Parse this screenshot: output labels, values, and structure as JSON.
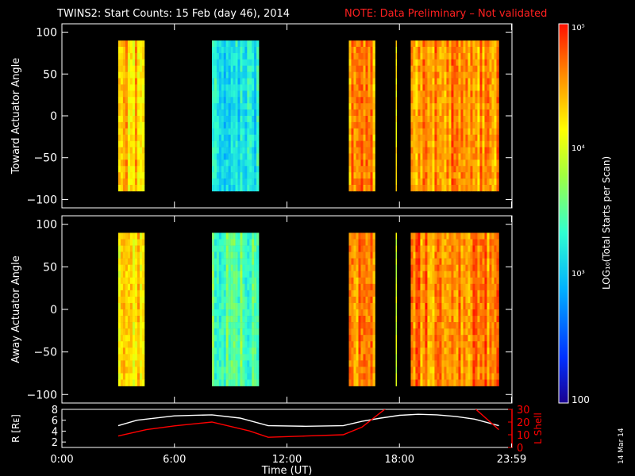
{
  "title": {
    "main": "TWINS2: Start Counts: 15 Feb (day  46), 2014",
    "note": "NOTE: Data Preliminary – Not validated",
    "note_color": "#ff2020"
  },
  "stamp": "14 Mar 14",
  "colorbar": {
    "label": "LOG₁₀(Total Starts per Scan)",
    "ticks": [
      "10⁵",
      "10⁴",
      "10³",
      "100"
    ],
    "range": [
      100,
      100000
    ],
    "scale": "log"
  },
  "chart_data": [
    {
      "type": "heatmap",
      "name": "toward",
      "ylabel": "Toward Actuator Angle",
      "ylim": [
        -110,
        110
      ],
      "yticks": [
        "100",
        "50",
        "0",
        "−50",
        "−100"
      ],
      "xlim": [
        0,
        24
      ],
      "data_blocks": [
        {
          "start": 3.0,
          "end": 4.4,
          "level": 4.35
        },
        {
          "start": 8.0,
          "end": 10.5,
          "level": 3.2
        },
        {
          "start": 15.3,
          "end": 16.7,
          "level": 4.55
        },
        {
          "start": 17.8,
          "end": 17.85,
          "level": 4.1
        },
        {
          "start": 18.6,
          "end": 23.3,
          "level": 4.55
        }
      ]
    },
    {
      "type": "heatmap",
      "name": "away",
      "ylabel": "Away Actuator Angle",
      "ylim": [
        -110,
        110
      ],
      "yticks": [
        "100",
        "50",
        "0",
        "−50",
        "−100"
      ],
      "xlim": [
        0,
        24
      ],
      "data_blocks": [
        {
          "start": 3.0,
          "end": 4.4,
          "level": 4.3
        },
        {
          "start": 8.0,
          "end": 10.5,
          "level": 3.5
        },
        {
          "start": 15.3,
          "end": 16.7,
          "level": 4.6
        },
        {
          "start": 17.8,
          "end": 17.85,
          "level": 4.0
        },
        {
          "start": 18.6,
          "end": 23.3,
          "level": 4.6
        }
      ]
    },
    {
      "type": "line",
      "name": "orbit",
      "ylabel": "R [Rᴇ]",
      "ylabel_right": "L Shell",
      "ylim": [
        1,
        8
      ],
      "ylim_right": [
        0,
        30
      ],
      "yticks": [
        "8",
        "6",
        "4",
        "2"
      ],
      "yticks_right": [
        "30",
        "20",
        "10",
        "0"
      ],
      "xlabel": "Time (UT)",
      "xticks": [
        "0:00",
        "6:00",
        "12:00",
        "18:00",
        "23:59"
      ],
      "xtick_values": [
        0,
        6,
        12,
        18,
        23.98
      ],
      "xlim": [
        0,
        24
      ],
      "series": [
        {
          "color": "#ffffff",
          "axis": "left",
          "x": [
            3.0,
            4.0,
            6.0,
            8.0,
            9.5,
            11.0,
            13.0,
            15.0,
            16.0,
            17.0,
            18.0,
            19.0,
            20.0,
            21.0,
            22.0,
            23.3
          ],
          "values": [
            5.0,
            6.0,
            6.8,
            7.0,
            6.4,
            5.0,
            4.9,
            5.0,
            5.8,
            6.4,
            6.9,
            7.1,
            7.0,
            6.7,
            6.2,
            5.0
          ]
        },
        {
          "color": "#ff0000",
          "axis": "right",
          "x": [
            3.0,
            4.5,
            6.0,
            8.0,
            10.0,
            11.0,
            13.0,
            15.0,
            16.0,
            17.3,
            18.0,
            22.0,
            23.3
          ],
          "values": [
            9,
            14,
            17,
            20,
            13,
            8,
            9,
            10,
            16,
            31,
            31,
            31,
            14
          ]
        }
      ]
    }
  ]
}
